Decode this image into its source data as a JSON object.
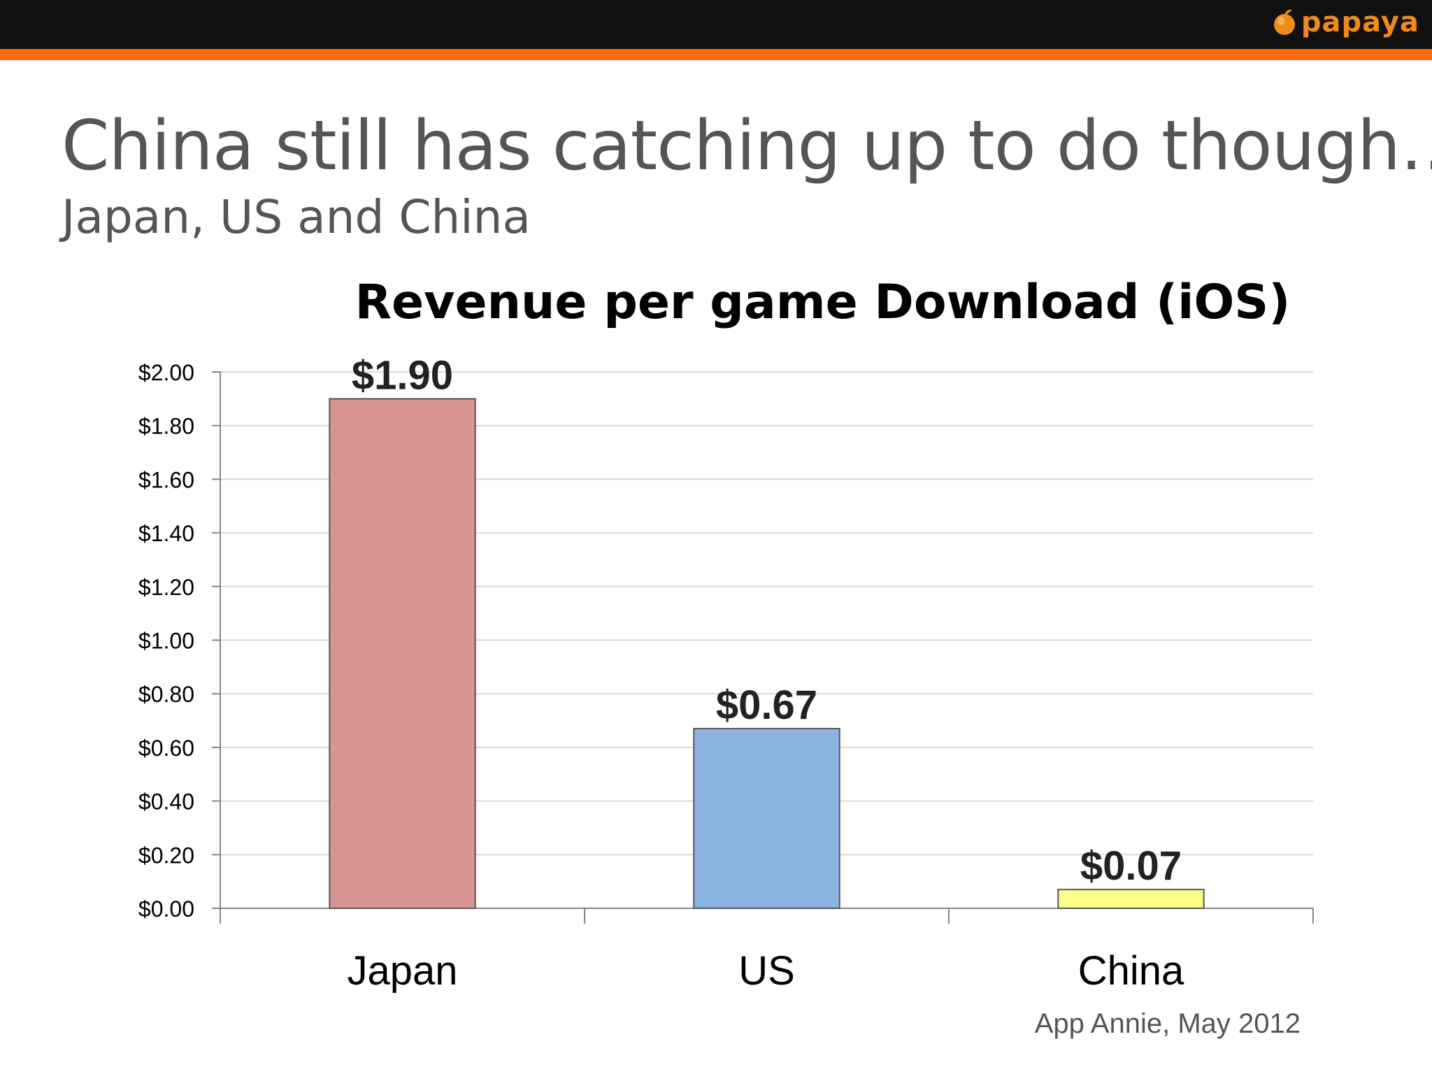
{
  "slide": {
    "title": "China still has catching up to do though…",
    "subtitle": "Japan, US and China",
    "logo_text": "papaya",
    "source": "App Annie, May 2012"
  },
  "colors": {
    "topbar": "#111111",
    "accent": "#ff6a0d",
    "logo": "#f08a1a"
  },
  "chart_data": {
    "type": "bar",
    "title": "Revenue per game Download (iOS)",
    "xlabel": "",
    "ylabel": "",
    "categories": [
      "Japan",
      "US",
      "China"
    ],
    "values": [
      1.9,
      0.67,
      0.07
    ],
    "data_labels": [
      "$1.90",
      "$0.67",
      "$0.07"
    ],
    "bar_colors": [
      "#d99594",
      "#8db3e2",
      "#ffff88"
    ],
    "ylim": [
      0,
      2.0
    ],
    "y_ticks": [
      0,
      0.2,
      0.4,
      0.6,
      0.8,
      1.0,
      1.2,
      1.4,
      1.6,
      1.8,
      2.0
    ],
    "y_tick_labels": [
      "$0.00",
      "$0.20",
      "$0.40",
      "$0.60",
      "$0.80",
      "$1.00",
      "$1.20",
      "$1.40",
      "$1.60",
      "$1.80",
      "$2.00"
    ],
    "grid": true,
    "legend": "none"
  }
}
